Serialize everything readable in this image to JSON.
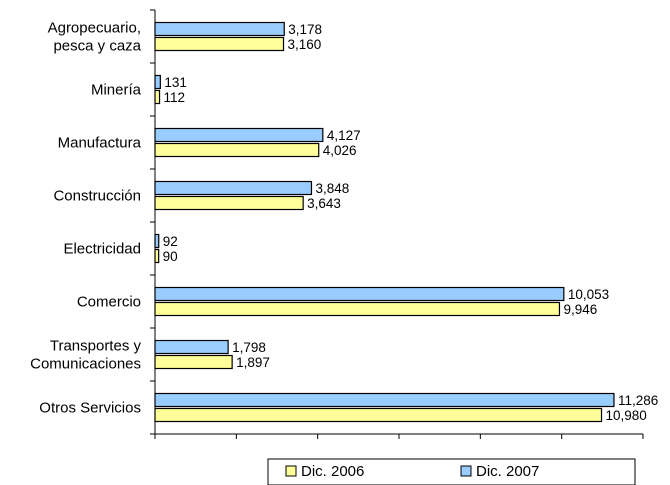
{
  "chart_data": {
    "type": "bar",
    "orientation": "horizontal",
    "title": "",
    "xlabel": "",
    "ylabel": "",
    "xlim": [
      0,
      12000
    ],
    "grid": false,
    "legend_position": "bottom-right",
    "categories": [
      [
        "Agropecuario,",
        "pesca y caza"
      ],
      [
        "Minería"
      ],
      [
        "Manufactura"
      ],
      [
        "Construcción"
      ],
      [
        "Electricidad"
      ],
      [
        "Comercio"
      ],
      [
        "Transportes y",
        "Comunicaciones"
      ],
      [
        "Otros Servicios"
      ]
    ],
    "series": [
      {
        "name": "Dic. 2007",
        "color": "#99CCFF",
        "values": [
          3178,
          131,
          4127,
          3848,
          92,
          10053,
          1798,
          11286
        ],
        "labels": [
          "3,178",
          "131",
          "4,127",
          "3,848",
          "92",
          "10,053",
          "1,798",
          "11,286"
        ]
      },
      {
        "name": "Dic. 2006",
        "color": "#FFFF99",
        "values": [
          3160,
          112,
          4026,
          3643,
          90,
          9946,
          1897,
          10980
        ],
        "labels": [
          "3,160",
          "112",
          "4,026",
          "3,643",
          "90",
          "9,946",
          "1,897",
          "10,980"
        ]
      }
    ],
    "legend_order": [
      "Dic. 2006",
      "Dic. 2007"
    ]
  }
}
